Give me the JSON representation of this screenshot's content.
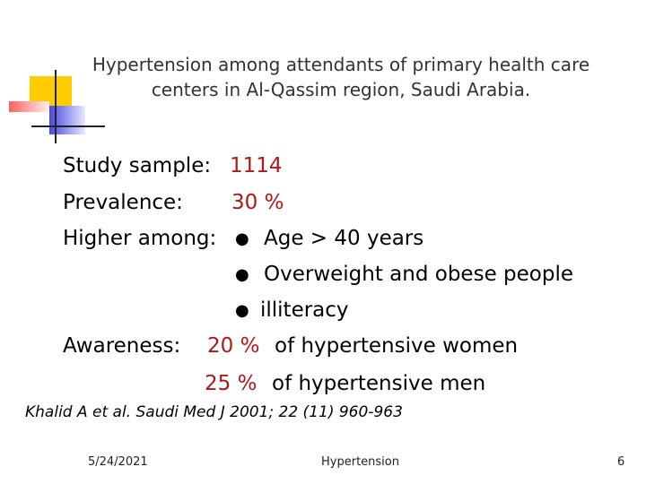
{
  "header": {
    "title_lines": [
      "Hypertension among attendants of primary health care",
      "centers in Al-Qassim region, Saudi Arabia."
    ]
  },
  "body": {
    "study_sample": {
      "label": "Study sample:",
      "value": "1114"
    },
    "prevalence": {
      "label": "Prevalence:",
      "value": "30 %"
    },
    "higher_among": {
      "label": "Higher among:",
      "bullet": "●",
      "items": [
        "Age > 40 years",
        "Overweight and obese people",
        "illiteracy"
      ]
    },
    "awareness": {
      "label": "Awareness:",
      "items": [
        {
          "value": "20 %",
          "text": "of hypertensive women"
        },
        {
          "value": "25 %",
          "text": "of hypertensive men"
        }
      ]
    }
  },
  "citation": "Khalid A et al. Saudi Med J 2001; 22 (11) 960-963",
  "footer": {
    "date": "5/24/2021",
    "title": "Hypertension",
    "page": "6"
  }
}
